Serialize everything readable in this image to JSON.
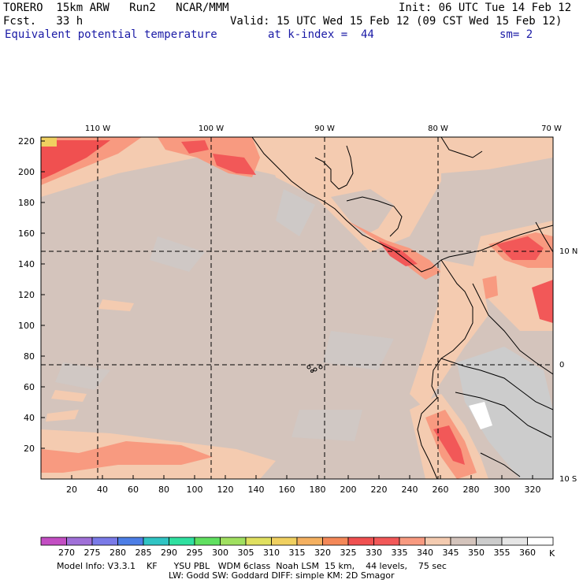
{
  "header": {
    "model": "TORERO  15km ARW   Run2   NCAR/MMM",
    "init": "Init: 06 UTC Tue 14 Feb 12",
    "fcst": "Fcst.   33 h",
    "valid": "Valid: 15 UTC Wed 15 Feb 12 (09 CST Wed 15 Feb 12)",
    "field": "Equivalent potential temperature",
    "level": "at k-index =  44",
    "smooth": "sm= 2"
  },
  "map": {
    "lon_labels": [
      "110 W",
      "100 W",
      "90 W",
      "80 W",
      "70 W"
    ],
    "lat_labels": [
      "10 N",
      "0",
      "10 S"
    ],
    "y_ticks": [
      "220",
      "200",
      "180",
      "160",
      "140",
      "120",
      "100",
      "80",
      "60",
      "40",
      "20"
    ],
    "x_ticks": [
      "20",
      "40",
      "60",
      "80",
      "100",
      "120",
      "140",
      "160",
      "180",
      "200",
      "220",
      "240",
      "260",
      "280",
      "300",
      "320"
    ]
  },
  "colorbar": {
    "labels": [
      "270",
      "275",
      "280",
      "285",
      "290",
      "295",
      "300",
      "305",
      "310",
      "315",
      "320",
      "325",
      "330",
      "335",
      "340",
      "345",
      "350",
      "355",
      "360"
    ],
    "unit": "K",
    "colors": [
      "#c34ec3",
      "#a070d8",
      "#7a7ae8",
      "#4d7ee6",
      "#30c4c4",
      "#30e0a0",
      "#60e060",
      "#a0e060",
      "#e0e060",
      "#f0d060",
      "#f4b060",
      "#f48858",
      "#f05050",
      "#f25858",
      "#f89a80",
      "#f4cbb0",
      "#d4c4bc",
      "#cccccc",
      "#e6e6e6",
      "#ffffff"
    ]
  },
  "footer": {
    "line1": "Model Info: V3.3.1    KF      YSU PBL   WDM 6class  Noah LSM  15 km,    44 levels,    75 sec",
    "line2": "LW: Godd SW: Goddard DIFF: simple KM: 2D Smagor"
  }
}
